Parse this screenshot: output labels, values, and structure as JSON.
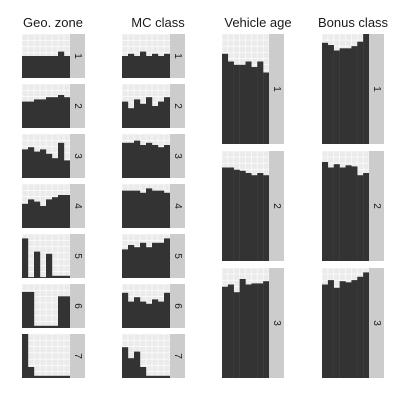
{
  "chart_data": {
    "type": "bar",
    "x_breaks": 8,
    "columns": [
      {
        "title": "Geo. zone",
        "panels": [
          {
            "strip": "1",
            "values": [
              0.5,
              0.5,
              0.5,
              0.5,
              0.5,
              0.5,
              0.6,
              0.5
            ]
          },
          {
            "strip": "2",
            "values": [
              0.6,
              0.6,
              0.65,
              0.65,
              0.7,
              0.7,
              0.75,
              0.7
            ]
          },
          {
            "strip": "3",
            "values": [
              0.65,
              0.7,
              0.6,
              0.65,
              0.55,
              0.45,
              0.8,
              0.4
            ]
          },
          {
            "strip": "4",
            "values": [
              0.55,
              0.65,
              0.6,
              0.5,
              0.65,
              0.7,
              0.75,
              0.75
            ]
          },
          {
            "strip": "5",
            "values": [
              0.9,
              0.02,
              0.6,
              0.02,
              0.55,
              0.05,
              0.05,
              0.05
            ]
          },
          {
            "strip": "6",
            "values": [
              0.82,
              0.82,
              0.05,
              0.05,
              0.05,
              0.05,
              0.72,
              0.72
            ]
          },
          {
            "strip": "7",
            "values": [
              1.0,
              0.25,
              0.05,
              0.05,
              0.05,
              0.05,
              0.05,
              0.05
            ]
          }
        ]
      },
      {
        "title": "MC class",
        "panels": [
          {
            "strip": "1",
            "values": [
              0.5,
              0.55,
              0.5,
              0.6,
              0.5,
              0.55,
              0.5,
              0.55
            ]
          },
          {
            "strip": "2",
            "values": [
              0.6,
              0.45,
              0.65,
              0.55,
              0.7,
              0.5,
              0.6,
              0.7
            ]
          },
          {
            "strip": "3",
            "values": [
              0.8,
              0.8,
              0.85,
              0.75,
              0.8,
              0.75,
              0.7,
              0.75
            ]
          },
          {
            "strip": "4",
            "values": [
              0.85,
              0.85,
              0.85,
              0.8,
              0.9,
              0.85,
              0.85,
              0.8
            ]
          },
          {
            "strip": "5",
            "values": [
              0.65,
              0.75,
              0.7,
              0.8,
              0.7,
              0.8,
              0.8,
              0.9
            ]
          },
          {
            "strip": "6",
            "values": [
              0.8,
              0.6,
              0.7,
              0.6,
              0.55,
              0.65,
              0.6,
              0.8
            ]
          },
          {
            "strip": "7",
            "values": [
              0.7,
              0.45,
              0.6,
              0.25,
              0.05,
              0.05,
              0.05,
              0.05
            ]
          }
        ]
      },
      {
        "title": "Vehicle age",
        "panels": [
          {
            "strip": "1",
            "values": [
              0.82,
              0.75,
              0.72,
              0.72,
              0.75,
              0.7,
              0.75,
              0.65
            ]
          },
          {
            "strip": "2",
            "values": [
              0.85,
              0.85,
              0.83,
              0.82,
              0.8,
              0.78,
              0.8,
              0.78
            ]
          },
          {
            "strip": "3",
            "values": [
              0.83,
              0.85,
              0.78,
              0.9,
              0.85,
              0.86,
              0.86,
              0.88
            ]
          }
        ]
      },
      {
        "title": "Bonus class",
        "panels": [
          {
            "strip": "1",
            "values": [
              0.92,
              0.9,
              0.85,
              0.87,
              0.87,
              0.89,
              0.93,
              1.0
            ]
          },
          {
            "strip": "2",
            "values": [
              0.9,
              0.85,
              0.88,
              0.85,
              0.87,
              0.86,
              0.78,
              0.8
            ]
          },
          {
            "strip": "3",
            "values": [
              0.85,
              0.89,
              0.82,
              0.88,
              0.87,
              0.89,
              0.92,
              0.96
            ]
          }
        ]
      }
    ],
    "ylim": [
      0,
      1
    ],
    "grid": true,
    "legend": "none",
    "bar_color": "#333333",
    "panel_background": "#ebebeb",
    "grid_color": "#ffffff",
    "strip_background": "#cccccc"
  }
}
